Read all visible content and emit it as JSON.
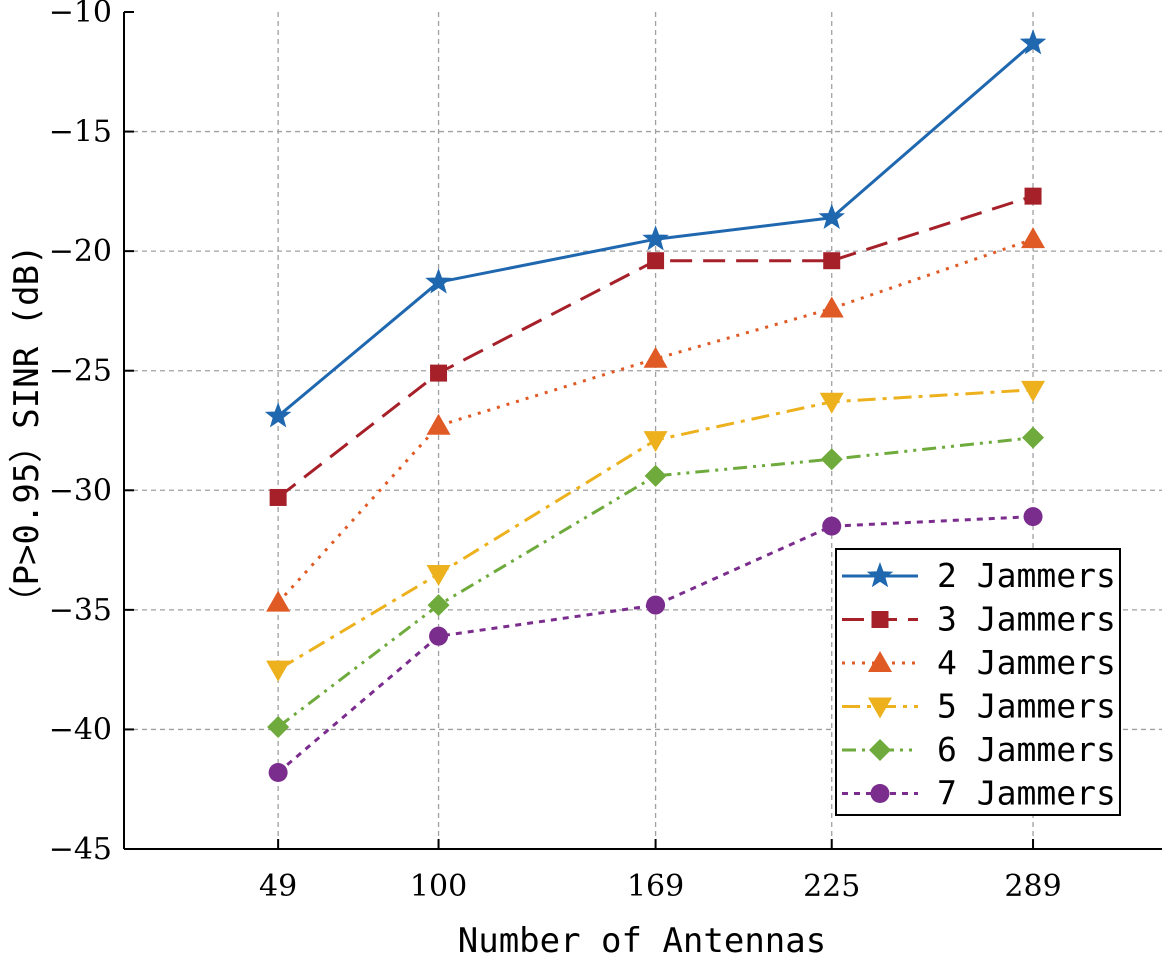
{
  "chart_data": {
    "type": "line",
    "title": "",
    "xlabel": "Number of Antennas",
    "ylabel": "（P>0.95）SINR (dB)",
    "categories": [
      "49",
      "100",
      "169",
      "225",
      "289"
    ],
    "x": [
      49,
      100,
      169,
      225,
      289
    ],
    "xlim": [
      0,
      330
    ],
    "ylim": [
      -45,
      -10
    ],
    "yticks": [
      -10,
      -15,
      -20,
      -25,
      -30,
      -35,
      -40,
      -45
    ],
    "ytick_labels": [
      "−10",
      "−15",
      "−20",
      "−25",
      "−30",
      "−35",
      "−40",
      "−45"
    ],
    "grid": true,
    "legend_position": "bottom-right",
    "series": [
      {
        "name": "2 Jammers",
        "values": [
          -26.9,
          -21.3,
          -19.5,
          -18.6,
          -11.3
        ],
        "color": "#1f68b0",
        "marker": "star",
        "dash": "solid"
      },
      {
        "name": "3 Jammers",
        "values": [
          -30.3,
          -25.1,
          -20.4,
          -20.4,
          -17.7
        ],
        "color": "#a6202a",
        "marker": "square",
        "dash": "dashed"
      },
      {
        "name": "4 Jammers",
        "values": [
          -34.7,
          -27.3,
          -24.5,
          -22.4,
          -19.5
        ],
        "color": "#e05a25",
        "marker": "triangle-up",
        "dash": "dotted"
      },
      {
        "name": "5 Jammers",
        "values": [
          -37.5,
          -33.5,
          -27.9,
          -26.3,
          -25.8
        ],
        "color": "#edb11e",
        "marker": "triangle-down",
        "dash": "dashdot"
      },
      {
        "name": "6 Jammers",
        "values": [
          -39.9,
          -34.8,
          -29.4,
          -28.7,
          -27.8
        ],
        "color": "#6eaa3c",
        "marker": "diamond",
        "dash": "dashdotdot"
      },
      {
        "name": "7 Jammers",
        "values": [
          -41.8,
          -36.1,
          -34.8,
          -31.5,
          -31.1
        ],
        "color": "#7b2d8e",
        "marker": "circle",
        "dash": "shortdash"
      }
    ]
  }
}
